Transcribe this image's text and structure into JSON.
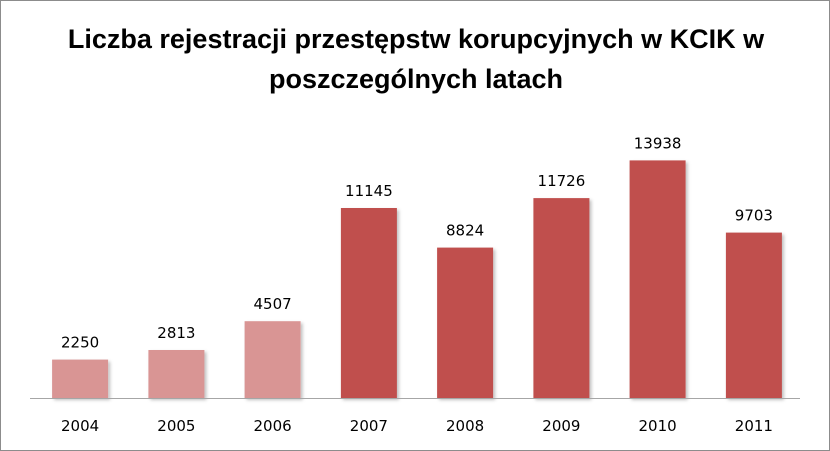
{
  "chart_data": {
    "type": "bar",
    "title": "Liczba rejestracji przestępstw korupcyjnych w KCIK w poszczególnych latach",
    "categories": [
      "2004",
      "2005",
      "2006",
      "2007",
      "2008",
      "2009",
      "2010",
      "2011"
    ],
    "values": [
      2250,
      2813,
      4507,
      11145,
      8824,
      11726,
      13938,
      9703
    ],
    "ylim": [
      0,
      15000
    ],
    "grid": false,
    "legend": "none",
    "colors": {
      "light": "#d99594",
      "dark": "#c0504d"
    },
    "highlight_from_index": 3
  }
}
